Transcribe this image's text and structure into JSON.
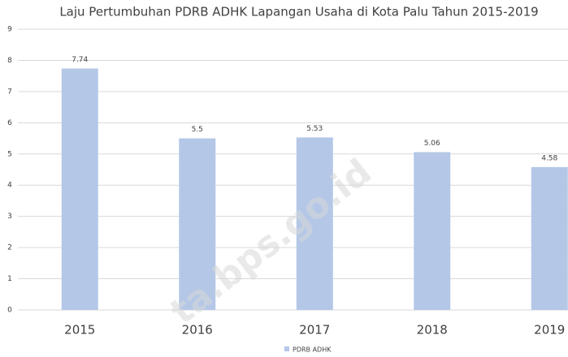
{
  "chart_data": {
    "type": "bar",
    "title": "Laju Pertumbuhan PDRB ADHK Lapangan Usaha di Kota Palu Tahun 2015-2019",
    "categories": [
      "2015",
      "2016",
      "2017",
      "2018",
      "2019"
    ],
    "series": [
      {
        "name": "PDRB ADHK",
        "color": "#b4c7e7",
        "values": [
          7.74,
          5.5,
          5.53,
          5.06,
          4.58
        ]
      }
    ],
    "ylim": [
      0,
      9
    ],
    "yticks": [
      0,
      1,
      2,
      3,
      4,
      5,
      6,
      7,
      8,
      9
    ],
    "grid": true,
    "legend": "bottom",
    "watermark": "ta.bps.go.id"
  }
}
